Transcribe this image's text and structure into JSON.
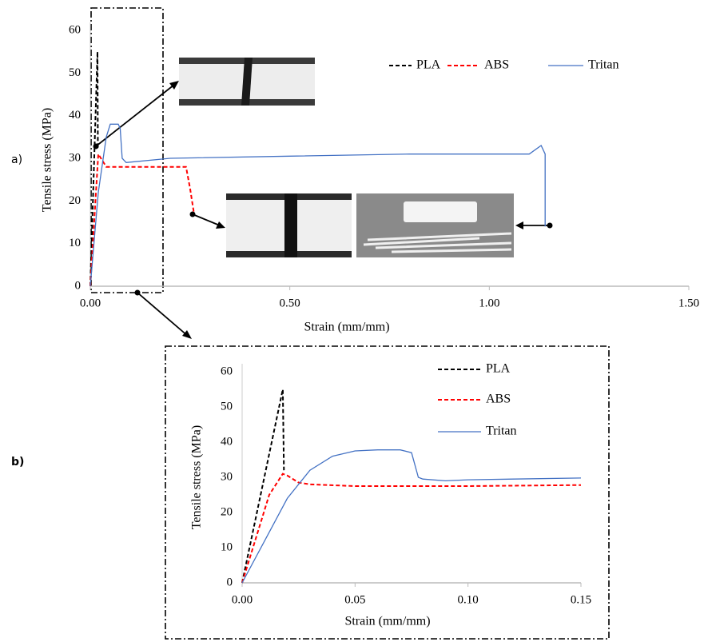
{
  "chart_data": [
    {
      "type": "line",
      "panel_label": "a)",
      "x_label": "Strain (mm/mm)",
      "y_label": "Tensile stress (MPa)",
      "xlim": [
        0,
        1.5
      ],
      "xticks": [
        {
          "value": 0,
          "label": "0.00"
        },
        {
          "value": 0.5,
          "label": "0.50"
        },
        {
          "value": 1,
          "label": "1.00"
        },
        {
          "value": 1.5,
          "label": "1.50"
        }
      ],
      "ylim": [
        0,
        60
      ],
      "yticks": [
        0,
        10,
        20,
        30,
        40,
        50,
        60
      ],
      "legend": "top-right",
      "series": [
        {
          "name": "PLA",
          "color": "#000000",
          "line_style": "dashed",
          "x": [
            0,
            0.018,
            0.019
          ],
          "values": [
            0,
            55,
            32
          ]
        },
        {
          "name": "ABS",
          "color": "#ff0000",
          "line_style": "dashed",
          "x": [
            0,
            0.02,
            0.04,
            0.1,
            0.2,
            0.24,
            0.25,
            0.26
          ],
          "values": [
            0,
            31,
            28,
            28,
            28,
            28,
            23,
            17
          ]
        },
        {
          "name": "Tritan",
          "color": "#4472c4",
          "line_style": "solid",
          "x": [
            0,
            0.02,
            0.04,
            0.05,
            0.07,
            0.075,
            0.08,
            0.09,
            0.2,
            0.5,
            0.8,
            1.0,
            1.1,
            1.13,
            1.14,
            1.14
          ],
          "values": [
            0,
            22,
            35,
            38,
            38,
            37,
            30,
            29,
            30,
            30.5,
            31,
            31,
            31,
            33,
            31,
            14
          ]
        }
      ]
    },
    {
      "type": "line",
      "panel_label": "b)",
      "x_label": "Strain (mm/mm)",
      "y_label": "Tensile stress (MPa)",
      "xlim": [
        0,
        0.15
      ],
      "xticks": [
        {
          "value": 0,
          "label": "0.00"
        },
        {
          "value": 0.05,
          "label": "0.05"
        },
        {
          "value": 0.1,
          "label": "0.10"
        },
        {
          "value": 0.15,
          "label": "0.15"
        }
      ],
      "ylim": [
        0,
        60
      ],
      "yticks": [
        0,
        10,
        20,
        30,
        40,
        50,
        60
      ],
      "legend": "top-right",
      "series": [
        {
          "name": "PLA",
          "color": "#000000",
          "line_style": "dashed",
          "x": [
            0,
            0.018,
            0.0185
          ],
          "values": [
            0,
            55,
            32
          ]
        },
        {
          "name": "ABS",
          "color": "#ff0000",
          "line_style": "dashed",
          "x": [
            0,
            0.012,
            0.018,
            0.02,
            0.025,
            0.03,
            0.05,
            0.1,
            0.15
          ],
          "values": [
            0,
            25,
            31,
            30.5,
            28.5,
            28,
            27.5,
            27.5,
            27.8
          ]
        },
        {
          "name": "Tritan",
          "color": "#4472c4",
          "line_style": "solid",
          "x": [
            0,
            0.01,
            0.02,
            0.03,
            0.04,
            0.05,
            0.06,
            0.07,
            0.075,
            0.078,
            0.08,
            0.09,
            0.1,
            0.15
          ],
          "values": [
            0,
            12,
            24,
            32,
            36,
            37.5,
            37.8,
            37.8,
            37,
            30,
            29.5,
            29,
            29.3,
            29.8
          ]
        }
      ]
    }
  ]
}
